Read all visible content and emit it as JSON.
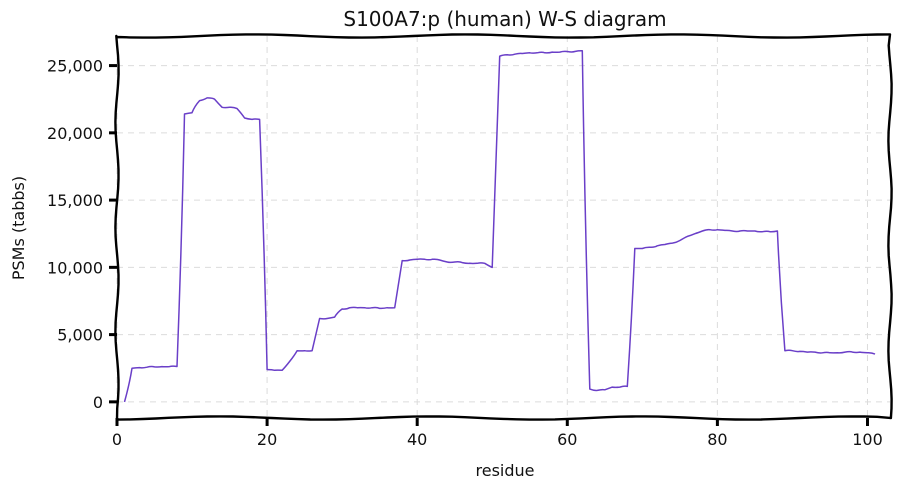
{
  "chart_data": {
    "type": "line",
    "title": "S100A7:p (human) W-S diagram",
    "xlabel": "residue",
    "ylabel": "PSMs (tabbs)",
    "xlim": [
      0,
      103
    ],
    "ylim": [
      -1200,
      27200
    ],
    "xticks": [
      0,
      20,
      40,
      60,
      80,
      100
    ],
    "xtick_labels": [
      "0",
      "20",
      "40",
      "60",
      "80",
      "100"
    ],
    "yticks": [
      0,
      5000,
      10000,
      15000,
      20000,
      25000
    ],
    "ytick_labels": [
      "0",
      "5,000",
      "10,000",
      "15,000",
      "20,000",
      "25,000"
    ],
    "grid": true,
    "legend": "none",
    "series": [
      {
        "color": "#6a3fc8",
        "x": [
          1,
          2,
          3,
          4,
          5,
          6,
          7,
          8,
          9,
          10,
          11,
          12,
          13,
          14,
          15,
          16,
          17,
          18,
          19,
          20,
          21,
          22,
          23,
          24,
          25,
          26,
          27,
          28,
          29,
          30,
          31,
          32,
          33,
          34,
          35,
          36,
          37,
          38,
          39,
          40,
          41,
          42,
          43,
          44,
          45,
          46,
          47,
          48,
          49,
          50,
          51,
          52,
          53,
          54,
          55,
          56,
          57,
          58,
          59,
          60,
          61,
          62,
          63,
          64,
          65,
          66,
          67,
          68,
          69,
          70,
          71,
          72,
          73,
          74,
          75,
          76,
          77,
          78,
          79,
          80,
          81,
          82,
          83,
          84,
          85,
          86,
          87,
          88,
          89,
          90,
          91,
          92,
          93,
          94,
          95,
          96,
          97,
          98,
          99,
          100,
          101
        ],
        "y": [
          0,
          2500,
          2550,
          2580,
          2600,
          2620,
          2620,
          2630,
          21400,
          21500,
          22400,
          22600,
          22500,
          21900,
          21900,
          21800,
          21100,
          21000,
          21000,
          2400,
          2350,
          2350,
          3000,
          3800,
          3800,
          3800,
          6200,
          6200,
          6300,
          6900,
          7000,
          7000,
          7000,
          7000,
          6950,
          7000,
          7000,
          10500,
          10550,
          10600,
          10600,
          10600,
          10550,
          10400,
          10400,
          10350,
          10300,
          10300,
          10300,
          10000,
          25700,
          25800,
          25850,
          25900,
          25950,
          25950,
          25950,
          26000,
          26000,
          26050,
          26050,
          26100,
          950,
          850,
          900,
          1100,
          1100,
          1150,
          11400,
          11400,
          11500,
          11600,
          11700,
          11800,
          12000,
          12300,
          12500,
          12700,
          12800,
          12800,
          12750,
          12700,
          12700,
          12700,
          12700,
          12650,
          12650,
          12700,
          3800,
          3800,
          3750,
          3700,
          3700,
          3650,
          3650,
          3650,
          3700,
          3700,
          3700,
          3650,
          3550
        ]
      }
    ]
  }
}
